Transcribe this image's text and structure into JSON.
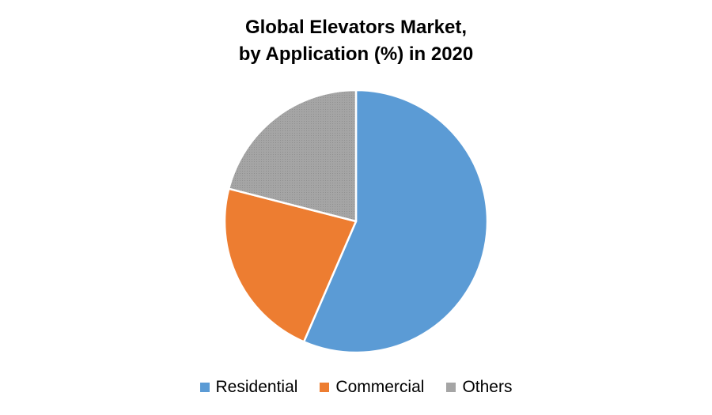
{
  "chart_data": {
    "type": "pie",
    "title": [
      "Global Elevators Market,",
      "by Application (%) in 2020"
    ],
    "series": [
      {
        "name": "Residential",
        "value": 56.5,
        "color": "#5B9BD5"
      },
      {
        "name": "Commercial",
        "value": 22.5,
        "color": "#ED7D31"
      },
      {
        "name": "Others",
        "value": 21.0,
        "color": "#A5A5A5"
      }
    ],
    "legend_position": "bottom"
  }
}
